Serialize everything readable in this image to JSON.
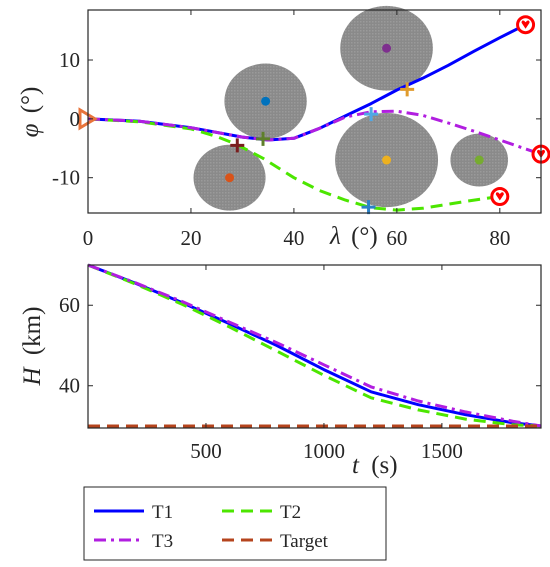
{
  "chart_data": [
    {
      "type": "line",
      "xlabel_sym": "λ",
      "xlabel_unit": "(°)",
      "ylabel_sym": "φ",
      "ylabel_unit": "(°)",
      "xlim": [
        0,
        88
      ],
      "ylim": [
        -16,
        18.5
      ],
      "xticks": [
        0,
        20,
        40,
        60,
        80
      ],
      "yticks": [
        -10,
        0,
        10
      ],
      "grid": false,
      "obstacles": [
        {
          "center": [
            34.5,
            3
          ],
          "radius_x": 8,
          "radius_y": 6.4,
          "dot_color": "#0072BD"
        },
        {
          "center": [
            27.5,
            -10
          ],
          "radius_x": 7,
          "radius_y": 5.6,
          "dot_color": "#D95319"
        },
        {
          "center": [
            58,
            12
          ],
          "radius_x": 9,
          "radius_y": 7.2,
          "dot_color": "#7E2F8E"
        },
        {
          "center": [
            58,
            -7
          ],
          "radius_x": 10,
          "radius_y": 8,
          "dot_color": "#EDB120"
        },
        {
          "center": [
            76,
            -7
          ],
          "radius_x": 5.6,
          "radius_y": 4.5,
          "dot_color": "#77AC30"
        }
      ],
      "series": [
        {
          "name": "T1",
          "color": "#0000FF",
          "dash": "solid",
          "x": [
            0,
            10,
            20,
            30,
            35,
            40,
            45,
            50,
            55,
            60,
            65,
            70,
            75,
            80,
            85
          ],
          "y": [
            0,
            -0.4,
            -1.5,
            -3.1,
            -3.6,
            -3.3,
            -1.6,
            0.5,
            2.6,
            4.9,
            6.9,
            9.1,
            11.5,
            13.8,
            16
          ]
        },
        {
          "name": "T2",
          "color": "#4CE600",
          "dash": "dashed",
          "x": [
            0,
            10,
            20,
            25,
            29,
            34,
            40,
            45,
            50,
            55,
            60,
            65,
            70,
            75,
            80
          ],
          "y": [
            0,
            -0.5,
            -1.7,
            -3,
            -4.4,
            -6.7,
            -10,
            -12.2,
            -13.8,
            -15.1,
            -15.5,
            -15.2,
            -14.5,
            -13.8,
            -13.2
          ]
        },
        {
          "name": "T3",
          "color": "#B11EE0",
          "dash": "dashdot",
          "x": [
            0,
            10,
            20,
            30,
            35,
            40,
            45,
            50,
            55,
            60,
            65,
            70,
            75,
            80,
            85,
            88
          ],
          "y": [
            0,
            -0.4,
            -1.5,
            -3.1,
            -3.6,
            -3.3,
            -1.6,
            0.3,
            1.2,
            1.3,
            0.6,
            -0.7,
            -2.1,
            -3.6,
            -5.1,
            -6
          ]
        }
      ],
      "markers": [
        {
          "type": "start-triangle",
          "at": [
            0,
            0
          ],
          "color": "#E8743B"
        },
        {
          "type": "cross",
          "at": [
            29,
            -4.5
          ],
          "color": "#7A1D1D"
        },
        {
          "type": "cross",
          "at": [
            34,
            -3.4
          ],
          "color": "#5E7F2A"
        },
        {
          "type": "cross",
          "at": [
            55,
            0.8
          ],
          "color": "#4FA8E6"
        },
        {
          "type": "cross",
          "at": [
            54.5,
            -15
          ],
          "color": "#2A82C8"
        },
        {
          "type": "cross",
          "at": [
            62,
            5
          ],
          "color": "#E09B2C"
        },
        {
          "type": "end-heart",
          "at": [
            85,
            16
          ],
          "color": "#FF0000"
        },
        {
          "type": "end-heart",
          "at": [
            80,
            -13.2
          ],
          "color": "#FF0000"
        },
        {
          "type": "end-heart",
          "at": [
            88,
            -6
          ],
          "color": "#FF0000"
        }
      ]
    },
    {
      "type": "line",
      "xlabel_sym": "t",
      "xlabel_unit": "(s)",
      "ylabel_sym": "H",
      "ylabel_unit": "(km)",
      "xlim": [
        0,
        1920
      ],
      "ylim": [
        29.5,
        70
      ],
      "xticks": [
        500,
        1000,
        1500
      ],
      "yticks": [
        40,
        60
      ],
      "grid": false,
      "series": [
        {
          "name": "T1",
          "color": "#0000FF",
          "dash": "solid",
          "width": 3,
          "x": [
            0,
            200,
            400,
            600,
            800,
            1000,
            1200,
            1400,
            1600,
            1800,
            1920
          ],
          "y": [
            70,
            65.5,
            60.6,
            55.4,
            50,
            44,
            38.5,
            35.3,
            32.8,
            30.8,
            30
          ]
        },
        {
          "name": "T2",
          "color": "#4CE600",
          "dash": "dashed",
          "width": 3,
          "x": [
            0,
            200,
            400,
            600,
            800,
            1000,
            1200,
            1400,
            1600,
            1800,
            1920
          ],
          "y": [
            70,
            65.3,
            60.2,
            54.6,
            48.6,
            42.6,
            37,
            34,
            31.7,
            30.3,
            30
          ]
        },
        {
          "name": "T3",
          "color": "#B11EE0",
          "dash": "dashdot",
          "width": 3,
          "x": [
            0,
            200,
            400,
            600,
            800,
            1000,
            1200,
            1400,
            1600,
            1800,
            1920
          ],
          "y": [
            70,
            65.6,
            60.9,
            55.8,
            50.7,
            45.2,
            39.7,
            36.2,
            33.5,
            31.2,
            30
          ]
        },
        {
          "name": "Target",
          "color": "#B5441D",
          "dash": "dashed",
          "width": 3,
          "x": [
            0,
            1920
          ],
          "y": [
            30,
            30
          ]
        }
      ]
    }
  ],
  "legend": {
    "items": [
      {
        "label": "T1",
        "color": "#0000FF",
        "dash": "solid"
      },
      {
        "label": "T2",
        "color": "#4CE600",
        "dash": "dashed"
      },
      {
        "label": "T3",
        "color": "#B11EE0",
        "dash": "dashdot"
      },
      {
        "label": "Target",
        "color": "#B5441D",
        "dash": "dashed"
      }
    ]
  }
}
